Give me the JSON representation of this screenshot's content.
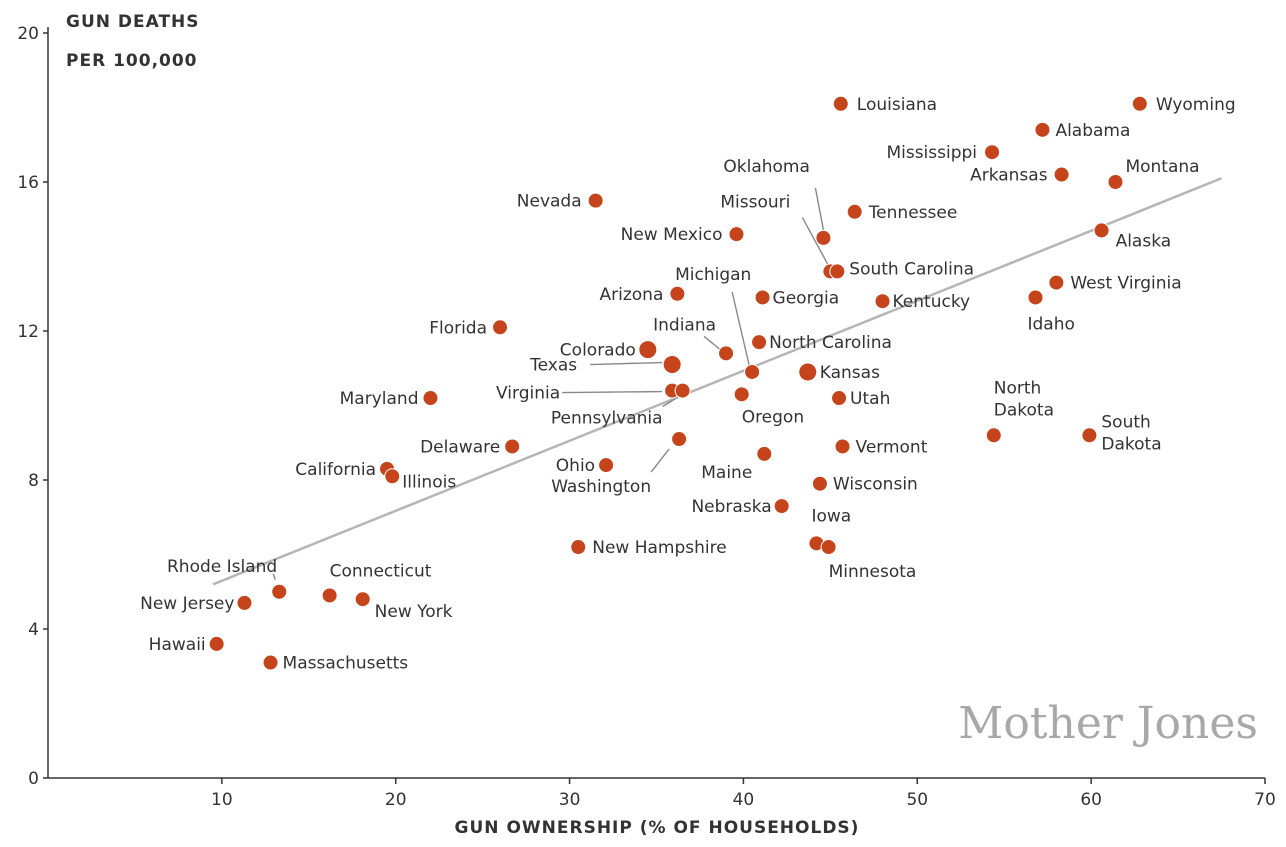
{
  "chart_data": {
    "type": "scatter",
    "title": "",
    "xlabel": "GUN OWNERSHIP (% OF HOUSEHOLDS)",
    "ylabel_line1": "GUN DEATHS",
    "ylabel_line2": "PER 100,000",
    "xlim": [
      0,
      70
    ],
    "ylim": [
      0,
      20
    ],
    "x_ticks": [
      10,
      20,
      30,
      40,
      50,
      60,
      70
    ],
    "y_ticks": [
      0,
      4,
      8,
      12,
      16,
      20
    ],
    "point_color": "#c5441b",
    "trendline_color": "#b5b5b5",
    "trendline": {
      "x": [
        9.5,
        67.5
      ],
      "y": [
        5.2,
        16.1
      ]
    },
    "grid": false,
    "watermark": "Mother Jones",
    "points": [
      {
        "label": "Wyoming",
        "x": 62.8,
        "y": 18.1
      },
      {
        "label": "Louisiana",
        "x": 45.6,
        "y": 18.1
      },
      {
        "label": "Alabama",
        "x": 57.2,
        "y": 17.4
      },
      {
        "label": "Mississippi",
        "x": 54.3,
        "y": 16.8
      },
      {
        "label": "Arkansas",
        "x": 58.3,
        "y": 16.2
      },
      {
        "label": "Montana",
        "x": 61.4,
        "y": 16.0
      },
      {
        "label": "Nevada",
        "x": 31.5,
        "y": 15.5
      },
      {
        "label": "Tennessee",
        "x": 46.4,
        "y": 15.2
      },
      {
        "label": "Alaska",
        "x": 60.6,
        "y": 14.7
      },
      {
        "label": "New Mexico",
        "x": 39.6,
        "y": 14.6
      },
      {
        "label": "Oklahoma",
        "x": 44.6,
        "y": 14.5
      },
      {
        "label": "Missouri",
        "x": 45.0,
        "y": 13.6
      },
      {
        "label": "South Carolina",
        "x": 45.4,
        "y": 13.6
      },
      {
        "label": "West Virginia",
        "x": 58.0,
        "y": 13.3
      },
      {
        "label": "Arizona",
        "x": 36.2,
        "y": 13.0
      },
      {
        "label": "Georgia",
        "x": 41.1,
        "y": 12.9
      },
      {
        "label": "Idaho",
        "x": 56.8,
        "y": 12.9
      },
      {
        "label": "Kentucky",
        "x": 48.0,
        "y": 12.8
      },
      {
        "label": "Florida",
        "x": 26.0,
        "y": 12.1
      },
      {
        "label": "North Carolina",
        "x": 40.9,
        "y": 11.7
      },
      {
        "label": "Colorado",
        "x": 34.5,
        "y": 11.5
      },
      {
        "label": "Indiana",
        "x": 39.0,
        "y": 11.4
      },
      {
        "label": "Texas",
        "x": 35.9,
        "y": 11.1
      },
      {
        "label": "Michigan",
        "x": 40.5,
        "y": 10.9
      },
      {
        "label": "Kansas",
        "x": 43.7,
        "y": 10.9
      },
      {
        "label": "Virginia",
        "x": 35.9,
        "y": 10.4
      },
      {
        "label": "Pennsylvania",
        "x": 36.5,
        "y": 10.4
      },
      {
        "label": "Oregon",
        "x": 39.9,
        "y": 10.3
      },
      {
        "label": "Maryland",
        "x": 22.0,
        "y": 10.2
      },
      {
        "label": "Utah",
        "x": 45.5,
        "y": 10.2
      },
      {
        "label": "North Dakota",
        "x": 54.4,
        "y": 9.2
      },
      {
        "label": "South Dakota",
        "x": 59.9,
        "y": 9.2
      },
      {
        "label": "Washington",
        "x": 36.3,
        "y": 9.1
      },
      {
        "label": "Delaware",
        "x": 26.7,
        "y": 8.9
      },
      {
        "label": "Vermont",
        "x": 45.7,
        "y": 8.9
      },
      {
        "label": "Maine",
        "x": 41.2,
        "y": 8.7
      },
      {
        "label": "Ohio",
        "x": 32.1,
        "y": 8.4
      },
      {
        "label": "California",
        "x": 19.5,
        "y": 8.3
      },
      {
        "label": "Illinois",
        "x": 19.8,
        "y": 8.1
      },
      {
        "label": "Wisconsin",
        "x": 44.4,
        "y": 7.9
      },
      {
        "label": "Nebraska",
        "x": 42.2,
        "y": 7.3
      },
      {
        "label": "Iowa",
        "x": 44.2,
        "y": 6.3
      },
      {
        "label": "New Hampshire",
        "x": 30.5,
        "y": 6.2
      },
      {
        "label": "Minnesota",
        "x": 44.9,
        "y": 6.2
      },
      {
        "label": "Rhode Island",
        "x": 13.3,
        "y": 5.0
      },
      {
        "label": "Connecticut",
        "x": 16.2,
        "y": 4.9
      },
      {
        "label": "New York",
        "x": 18.1,
        "y": 4.8
      },
      {
        "label": "New Jersey",
        "x": 11.3,
        "y": 4.7
      },
      {
        "label": "Hawaii",
        "x": 9.7,
        "y": 3.6
      },
      {
        "label": "Massachusetts",
        "x": 12.8,
        "y": 3.1
      }
    ]
  }
}
